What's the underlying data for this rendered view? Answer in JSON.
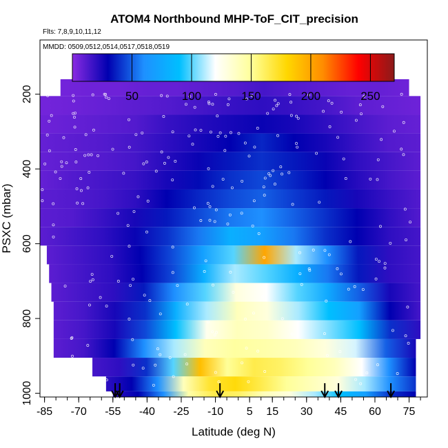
{
  "chart_data": {
    "type": "heatmap",
    "title": "ATOM4 Northbound MHP-ToF_CIT_precision",
    "subtitle": "Flts: 7,8,9,10,11,12",
    "annotation": "MMDD: 0509,0512,0514,0517,0518,0519",
    "xlabel": "Latitude (deg N)",
    "ylabel": "PSXC (mbar)",
    "xlim": [
      -87,
      83
    ],
    "ylim": [
      1010,
      55
    ],
    "x_ticks": [
      "-85",
      "-70",
      "-55",
      "-40",
      "-25",
      "-10",
      "5",
      "15",
      "30",
      "45",
      "60",
      "75"
    ],
    "y_ticks": [
      "200",
      "400",
      "600",
      "800",
      "1000"
    ],
    "colorbar": {
      "range": [
        0,
        270
      ],
      "ticks": [
        "50",
        "100",
        "150",
        "200",
        "250"
      ],
      "palette": [
        "#8a2be2",
        "#0000b0",
        "#1e90ff",
        "#00bfff",
        "#ffffff",
        "#ffff99",
        "#ffd700",
        "#ff8c00",
        "#ff0000",
        "#8b1a1a"
      ]
    },
    "profile_markers_lat": [
      -54,
      -52,
      -8,
      38,
      44,
      67
    ],
    "layers": [
      {
        "p": 180,
        "lat_min": -78,
        "lat_max": 75,
        "values": [
          5,
          6,
          6,
          8,
          8,
          10,
          12,
          15,
          12,
          10,
          8,
          8,
          6
        ]
      },
      {
        "p": 230,
        "lat_min": -87,
        "lat_max": 80,
        "values": [
          5,
          6,
          8,
          10,
          12,
          15,
          18,
          20,
          18,
          15,
          10,
          8,
          6
        ]
      },
      {
        "p": 280,
        "lat_min": -87,
        "lat_max": 80,
        "values": [
          6,
          8,
          10,
          12,
          18,
          22,
          25,
          28,
          25,
          20,
          15,
          10,
          8
        ]
      },
      {
        "p": 330,
        "lat_min": -87,
        "lat_max": 80,
        "values": [
          8,
          10,
          12,
          15,
          20,
          25,
          30,
          38,
          30,
          25,
          18,
          12,
          10
        ]
      },
      {
        "p": 380,
        "lat_min": -87,
        "lat_max": 80,
        "values": [
          8,
          10,
          12,
          15,
          22,
          28,
          35,
          40,
          35,
          28,
          20,
          15,
          10
        ]
      },
      {
        "p": 430,
        "lat_min": -87,
        "lat_max": 80,
        "values": [
          8,
          12,
          15,
          18,
          25,
          32,
          40,
          45,
          38,
          30,
          22,
          15,
          10
        ]
      },
      {
        "p": 480,
        "lat_min": -87,
        "lat_max": 80,
        "values": [
          10,
          12,
          15,
          20,
          30,
          38,
          45,
          50,
          42,
          35,
          25,
          18,
          12
        ]
      },
      {
        "p": 530,
        "lat_min": -87,
        "lat_max": 80,
        "values": [
          10,
          12,
          18,
          25,
          35,
          45,
          55,
          60,
          50,
          40,
          30,
          20,
          12
        ]
      },
      {
        "p": 580,
        "lat_min": -87,
        "lat_max": 80,
        "values": [
          10,
          15,
          20,
          28,
          40,
          55,
          80,
          70,
          55,
          40,
          30,
          20,
          15
        ]
      },
      {
        "p": 630,
        "lat_min": -84,
        "lat_max": 80,
        "values": [
          10,
          15,
          20,
          30,
          45,
          70,
          100,
          200,
          110,
          60,
          35,
          20,
          15
        ]
      },
      {
        "p": 680,
        "lat_min": -83,
        "lat_max": 80,
        "values": [
          10,
          15,
          20,
          30,
          45,
          80,
          110,
          100,
          80,
          55,
          35,
          20,
          15
        ]
      },
      {
        "p": 730,
        "lat_min": -82,
        "lat_max": 80,
        "values": [
          10,
          15,
          20,
          35,
          60,
          100,
          130,
          120,
          100,
          75,
          50,
          25,
          15
        ]
      },
      {
        "p": 780,
        "lat_min": -81,
        "lat_max": 80,
        "values": [
          10,
          15,
          25,
          40,
          80,
          110,
          140,
          130,
          110,
          90,
          70,
          30,
          15
        ]
      },
      {
        "p": 830,
        "lat_min": -81,
        "lat_max": 80,
        "values": [
          10,
          15,
          25,
          45,
          90,
          125,
          140,
          135,
          120,
          105,
          90,
          40,
          20
        ]
      },
      {
        "p": 880,
        "lat_min": -81,
        "lat_max": 78,
        "values": [
          10,
          15,
          30,
          60,
          110,
          140,
          148,
          145,
          140,
          130,
          115,
          50,
          25
        ]
      },
      {
        "p": 930,
        "lat_min": -64,
        "lat_max": 78,
        "values": [
          15,
          20,
          40,
          100,
          190,
          150,
          165,
          160,
          150,
          140,
          120,
          60,
          30
        ]
      },
      {
        "p": 980,
        "lat_min": -58,
        "lat_max": 78,
        "values": [
          20,
          30,
          60,
          140,
          170,
          178,
          165,
          150,
          140,
          130,
          110,
          60,
          40
        ]
      },
      {
        "p": 1010,
        "lat_min": -55,
        "lat_max": 78,
        "values": [
          20,
          30,
          60,
          145,
          165,
          160,
          140,
          130,
          110,
          90,
          70,
          40,
          30
        ]
      }
    ]
  }
}
